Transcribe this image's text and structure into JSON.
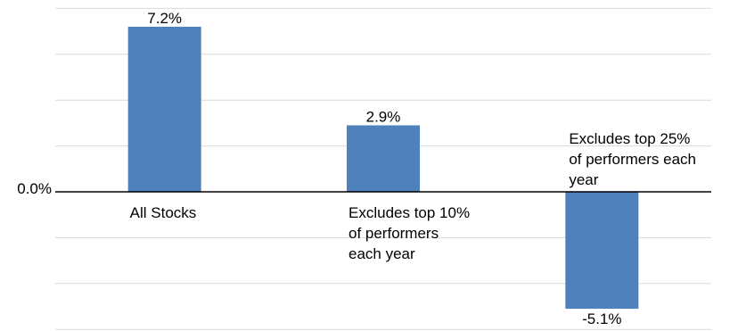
{
  "chart_data": {
    "type": "bar",
    "title": "",
    "xlabel": "",
    "ylabel": "",
    "ylim": [
      -6,
      8
    ],
    "grid": true,
    "bar_color": "#4F81BD",
    "zero_tick_label": "0.0%",
    "categories": [
      {
        "lines": [
          "All Stocks"
        ]
      },
      {
        "lines": [
          "Excludes top 10%",
          "of performers",
          "each year"
        ]
      },
      {
        "lines": [
          "Excludes top 25%",
          "of performers each",
          "year"
        ]
      }
    ],
    "values": [
      7.2,
      2.9,
      -5.1
    ],
    "data_labels": [
      "7.2%",
      "2.9%",
      "-5.1%"
    ]
  }
}
